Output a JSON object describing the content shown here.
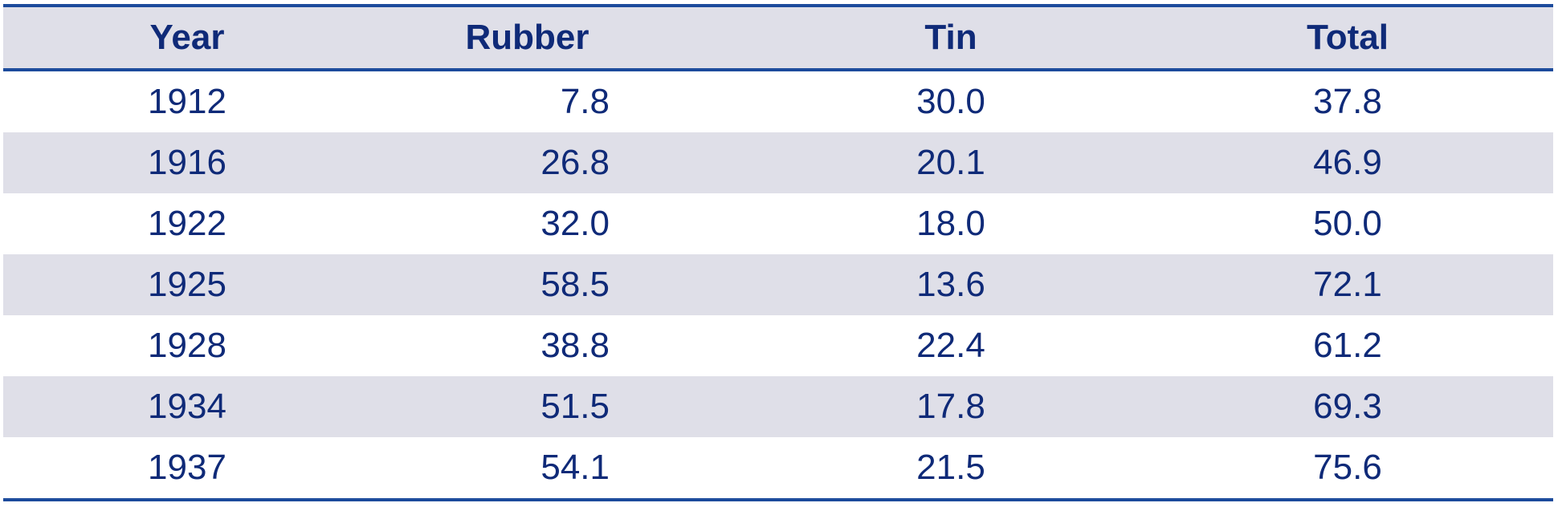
{
  "table": {
    "columns": [
      "Year",
      "Rubber",
      "Tin",
      "Total"
    ],
    "rows": [
      [
        "1912",
        "7.8",
        "30.0",
        "37.8"
      ],
      [
        "1916",
        "26.8",
        "20.1",
        "46.9"
      ],
      [
        "1922",
        "32.0",
        "18.0",
        "50.0"
      ],
      [
        "1925",
        "58.5",
        "13.6",
        "72.1"
      ],
      [
        "1928",
        "38.8",
        "22.4",
        "61.2"
      ],
      [
        "1934",
        "51.5",
        "17.8",
        "69.3"
      ],
      [
        "1937",
        "54.1",
        "21.5",
        "75.6"
      ]
    ]
  }
}
